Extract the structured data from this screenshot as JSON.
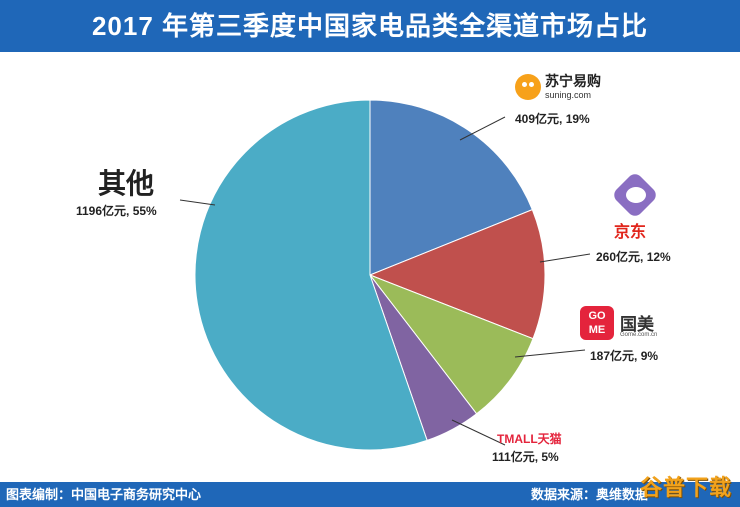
{
  "title": "2017 年第三季度中国家电品类全渠道市场占比",
  "footer": {
    "source_left": "图表编制：中国电子商务研究中心",
    "source_right": "数据来源：奥维数据"
  },
  "watermark": "谷普下载",
  "logos": {
    "suning_name": "苏宁易购",
    "suning_url": "suning.com",
    "jd_name": "京东",
    "gome_box": "GO ME",
    "gome_name": "国美",
    "gome_url": "Gome.com.cn",
    "tmall_name": "TMALL天猫"
  },
  "chart_data": {
    "type": "pie",
    "title": "2017 年第三季度中国家电品类全渠道市场占比",
    "unit": "亿元",
    "slices": [
      {
        "name": "苏宁易购",
        "value": 409,
        "percent": 19,
        "color": "#4f81bd",
        "label": "409亿元, 19%"
      },
      {
        "name": "京东",
        "value": 260,
        "percent": 12,
        "color": "#c0504d",
        "label": "260亿元, 12%"
      },
      {
        "name": "国美",
        "value": 187,
        "percent": 9,
        "color": "#9bbb59",
        "label": "187亿元, 9%"
      },
      {
        "name": "天猫",
        "value": 111,
        "percent": 5,
        "color": "#8064a2",
        "label": "111亿元, 5%"
      },
      {
        "name": "其他",
        "value": 1196,
        "percent": 55,
        "color": "#4bacc6",
        "label": "1196亿元, 55%"
      }
    ]
  }
}
